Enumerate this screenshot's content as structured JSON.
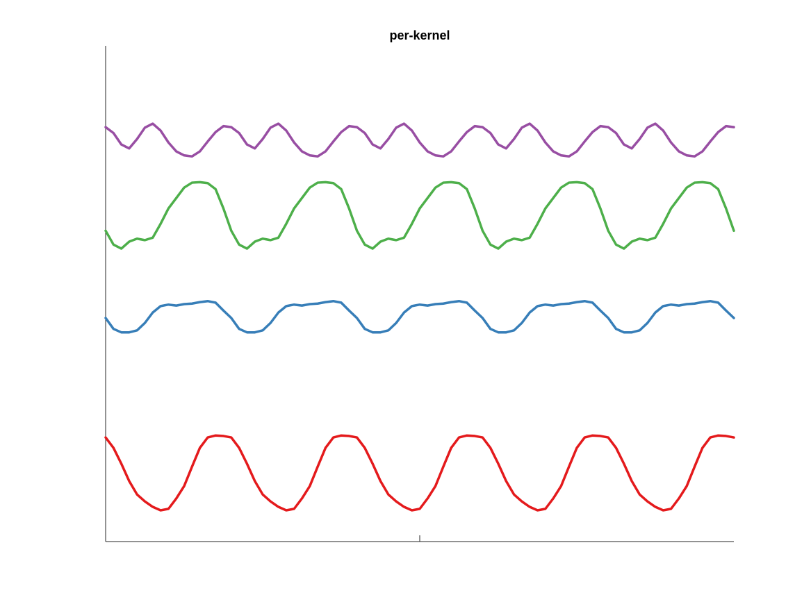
{
  "chart_data": {
    "type": "line",
    "title": "per-kernel",
    "x": [
      0,
      1,
      2,
      3,
      4,
      5,
      6,
      7,
      8,
      9,
      10,
      11,
      12,
      13,
      14,
      15,
      16,
      17,
      18,
      19,
      20,
      21,
      22,
      23,
      24,
      25,
      26,
      27,
      28,
      29,
      30,
      31,
      32,
      33,
      34,
      35,
      36,
      37,
      38,
      39,
      40,
      41,
      42,
      43,
      44,
      45,
      46,
      47,
      48,
      49,
      50,
      51,
      52,
      53,
      54,
      55,
      56,
      57,
      58,
      59,
      60,
      61,
      62,
      63,
      64,
      65,
      66,
      67,
      68,
      69,
      70,
      71,
      72,
      73,
      74,
      75,
      76,
      77,
      78,
      79,
      80
    ],
    "xlim": [
      0,
      80
    ],
    "xticks": [
      40
    ],
    "ylim": [
      0,
      10
    ],
    "series": [
      {
        "color": "#e41a1c",
        "values": [
          2.1,
          1.89,
          1.57,
          1.22,
          0.95,
          0.81,
          0.7,
          0.63,
          0.66,
          0.87,
          1.12,
          1.51,
          1.89,
          2.1,
          2.14,
          2.13,
          2.1,
          1.89,
          1.57,
          1.22,
          0.95,
          0.81,
          0.7,
          0.63,
          0.66,
          0.87,
          1.12,
          1.51,
          1.89,
          2.1,
          2.14,
          2.13,
          2.1,
          1.89,
          1.57,
          1.22,
          0.95,
          0.81,
          0.7,
          0.63,
          0.66,
          0.87,
          1.12,
          1.51,
          1.89,
          2.1,
          2.14,
          2.13,
          2.1,
          1.89,
          1.57,
          1.22,
          0.95,
          0.81,
          0.7,
          0.63,
          0.66,
          0.87,
          1.12,
          1.51,
          1.89,
          2.1,
          2.14,
          2.13,
          2.1,
          1.89,
          1.57,
          1.22,
          0.95,
          0.81,
          0.7,
          0.63,
          0.66,
          0.87,
          1.12,
          1.51,
          1.89,
          2.1,
          2.14,
          2.13,
          2.1
        ]
      },
      {
        "color": "#377eb8",
        "values": [
          4.51,
          4.29,
          4.22,
          4.22,
          4.26,
          4.41,
          4.62,
          4.75,
          4.78,
          4.76,
          4.79,
          4.8,
          4.83,
          4.85,
          4.82,
          4.66,
          4.51,
          4.29,
          4.22,
          4.22,
          4.26,
          4.41,
          4.62,
          4.75,
          4.78,
          4.76,
          4.79,
          4.8,
          4.83,
          4.85,
          4.82,
          4.66,
          4.51,
          4.29,
          4.22,
          4.22,
          4.26,
          4.41,
          4.62,
          4.75,
          4.78,
          4.76,
          4.79,
          4.8,
          4.83,
          4.85,
          4.82,
          4.66,
          4.51,
          4.29,
          4.22,
          4.22,
          4.26,
          4.41,
          4.62,
          4.75,
          4.78,
          4.76,
          4.79,
          4.8,
          4.83,
          4.85,
          4.82,
          4.66,
          4.51,
          4.29,
          4.22,
          4.22,
          4.26,
          4.41,
          4.62,
          4.75,
          4.78,
          4.76,
          4.79,
          4.8,
          4.83,
          4.85,
          4.82,
          4.66,
          4.51
        ]
      },
      {
        "color": "#4daf4a",
        "values": [
          6.27,
          5.99,
          5.91,
          6.05,
          6.11,
          6.08,
          6.13,
          6.41,
          6.72,
          6.93,
          7.14,
          7.24,
          7.25,
          7.23,
          7.11,
          6.72,
          6.27,
          5.99,
          5.91,
          6.05,
          6.11,
          6.08,
          6.13,
          6.41,
          6.72,
          6.93,
          7.14,
          7.24,
          7.25,
          7.23,
          7.11,
          6.72,
          6.27,
          5.99,
          5.91,
          6.05,
          6.11,
          6.08,
          6.13,
          6.41,
          6.72,
          6.93,
          7.14,
          7.24,
          7.25,
          7.23,
          7.11,
          6.72,
          6.27,
          5.99,
          5.91,
          6.05,
          6.11,
          6.08,
          6.13,
          6.41,
          6.72,
          6.93,
          7.14,
          7.24,
          7.25,
          7.23,
          7.11,
          6.72,
          6.27,
          5.99,
          5.91,
          6.05,
          6.11,
          6.08,
          6.13,
          6.41,
          6.72,
          6.93,
          7.14,
          7.24,
          7.25,
          7.23,
          7.11,
          6.72,
          6.27
        ]
      },
      {
        "color": "#984ea3",
        "values": [
          8.36,
          8.24,
          8.01,
          7.93,
          8.12,
          8.35,
          8.43,
          8.29,
          8.05,
          7.87,
          7.79,
          7.77,
          7.87,
          8.07,
          8.26,
          8.38,
          8.36,
          8.24,
          8.01,
          7.93,
          8.12,
          8.35,
          8.43,
          8.29,
          8.05,
          7.87,
          7.79,
          7.77,
          7.87,
          8.07,
          8.26,
          8.38,
          8.36,
          8.24,
          8.01,
          7.93,
          8.12,
          8.35,
          8.43,
          8.29,
          8.05,
          7.87,
          7.79,
          7.77,
          7.87,
          8.07,
          8.26,
          8.38,
          8.36,
          8.24,
          8.01,
          7.93,
          8.12,
          8.35,
          8.43,
          8.29,
          8.05,
          7.87,
          7.79,
          7.77,
          7.87,
          8.07,
          8.26,
          8.38,
          8.36,
          8.24,
          8.01,
          7.93,
          8.12,
          8.35,
          8.43,
          8.29,
          8.05,
          7.87,
          7.79,
          7.77,
          7.87,
          8.07,
          8.26,
          8.38,
          8.36
        ]
      }
    ]
  }
}
